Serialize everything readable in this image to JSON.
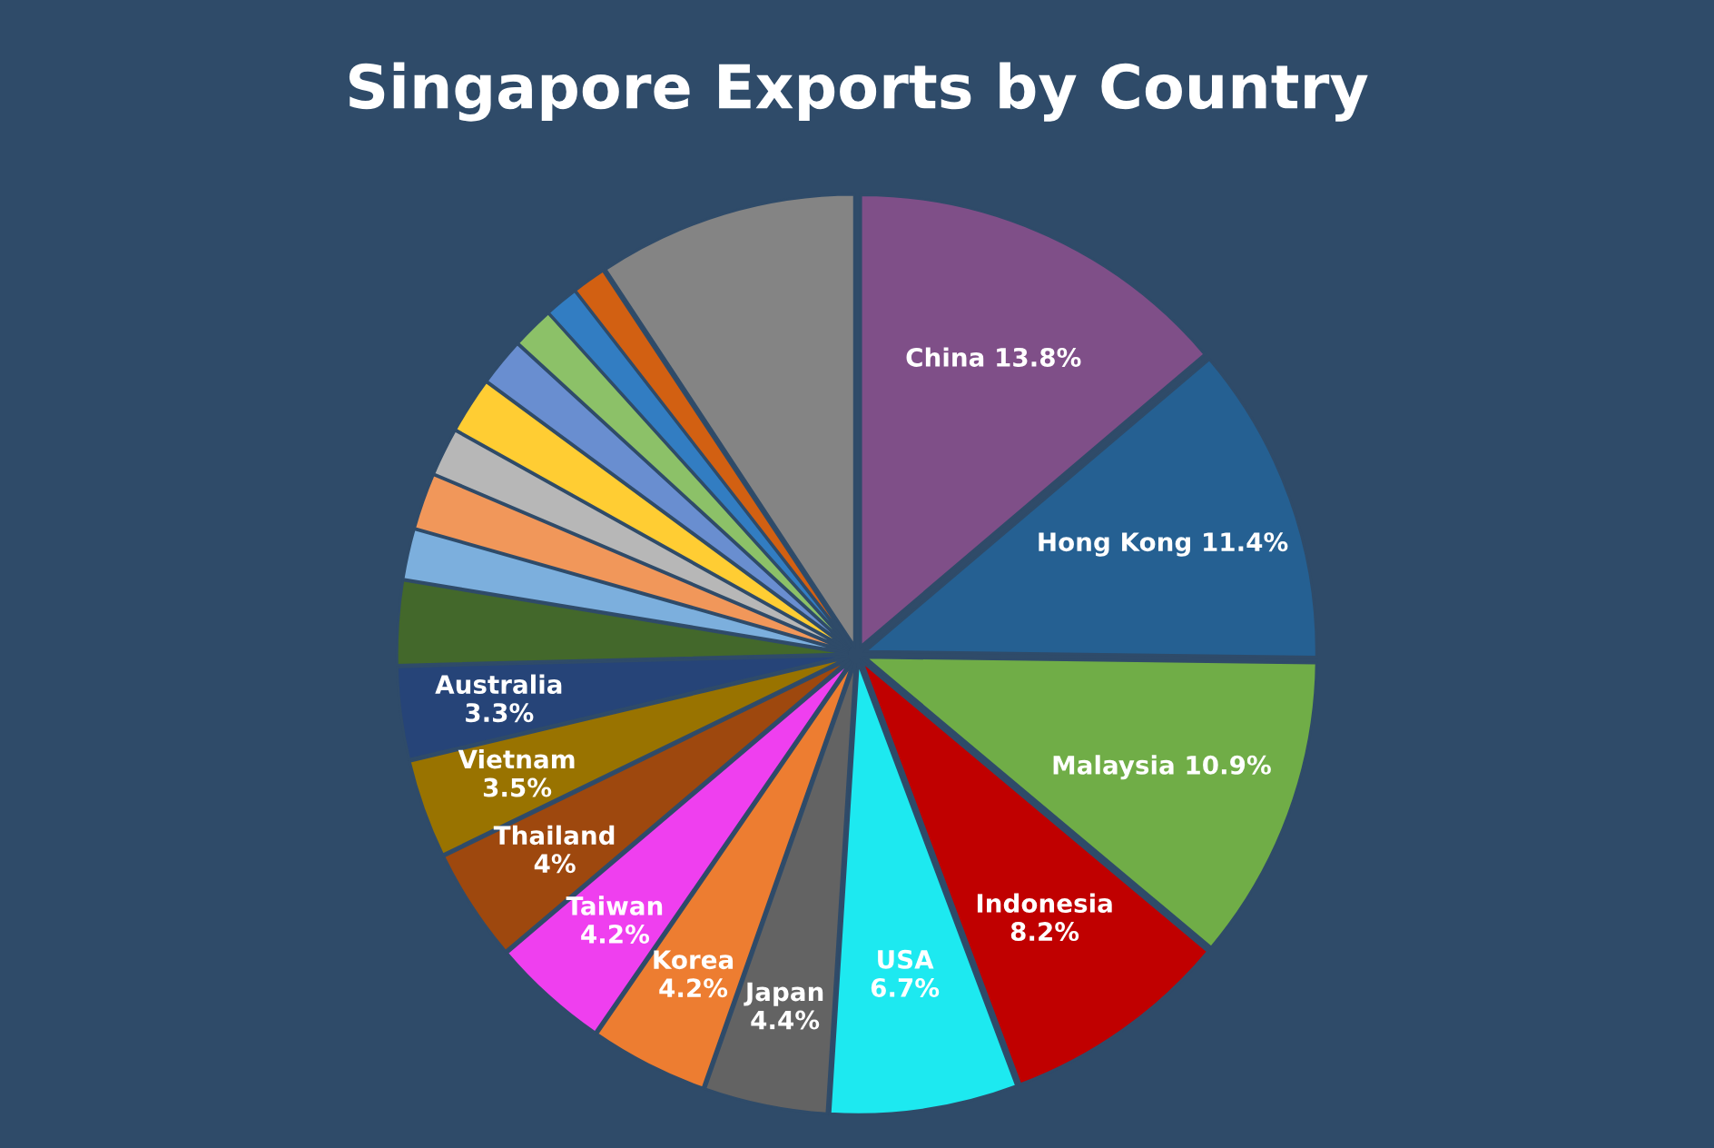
{
  "chart_data": {
    "type": "pie",
    "title": "Singapore Exports by Country",
    "categories": [
      "China",
      "Hong Kong",
      "Malaysia",
      "Indonesia",
      "USA",
      "Japan",
      "Korea",
      "Taiwan",
      "Thailand",
      "Vietnam",
      "Australia",
      null,
      null,
      null,
      null,
      null,
      null,
      null,
      null,
      null,
      null
    ],
    "values": [
      13.8,
      11.4,
      10.9,
      8.2,
      6.7,
      4.4,
      4.2,
      4.2,
      4,
      3.5,
      3.3,
      3.0,
      1.8,
      2.0,
      1.7,
      2.0,
      1.7,
      1.5,
      1.2,
      1.2,
      9.3
    ],
    "value_labels": [
      "13.8%",
      "11.4%",
      "10.9%",
      "8.2%",
      "6.7%",
      "4.4%",
      "4.2%",
      "4.2%",
      "4%",
      "3.5%",
      "3.3%",
      null,
      null,
      null,
      null,
      null,
      null,
      null,
      null,
      null,
      null
    ],
    "colors": [
      "#7f4f88",
      "#256092",
      "#70ad47",
      "#c00000",
      "#1de9f0",
      "#636363",
      "#ed7d31",
      "#ef3fef",
      "#9e480e",
      "#997300",
      "#264478",
      "#43682b",
      "#7cafdd",
      "#f1975a",
      "#b7b7b7",
      "#ffcd33",
      "#698ed0",
      "#8cc168",
      "#327dc2",
      "#d26012",
      "#848484"
    ],
    "legend": false
  }
}
